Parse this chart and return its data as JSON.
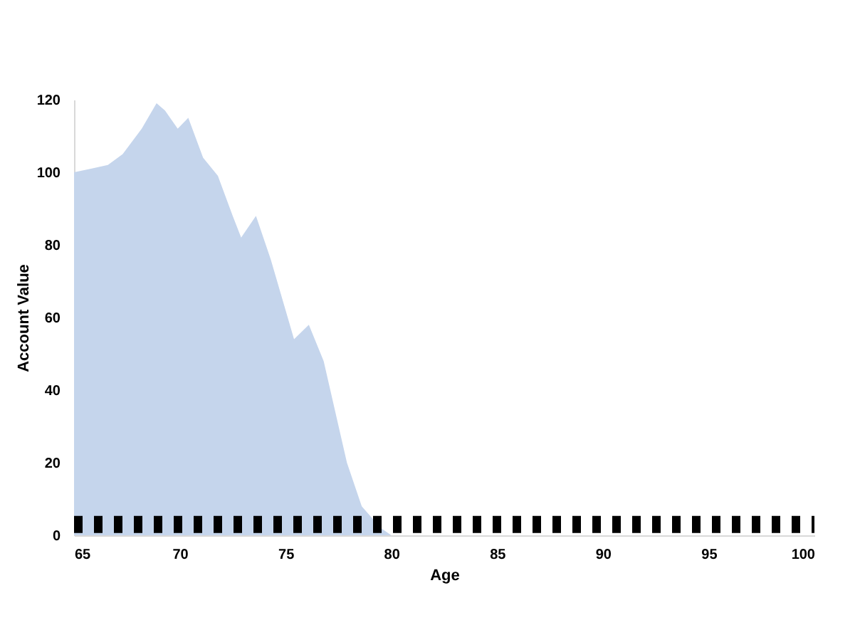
{
  "chart_data": {
    "type": "area",
    "xlabel": "Age",
    "ylabel": "Account Value",
    "xlim": [
      65,
      100
    ],
    "xticks": [
      65,
      70,
      75,
      80,
      85,
      90,
      95,
      100
    ],
    "ylim": [
      0,
      120
    ],
    "yticks": [
      0,
      20,
      40,
      60,
      80,
      100,
      120
    ],
    "series": [
      {
        "color": "#c5d5ec",
        "x": [
          65,
          65.8,
          66.6,
          67.3,
          68.2,
          68.9,
          69.3,
          69.9,
          70.4,
          71.1,
          71.8,
          72.5,
          72.9,
          73.6,
          74.3,
          75.0,
          75.4,
          76.1,
          76.8,
          77.9,
          78.6,
          79.5,
          80
        ],
        "values": [
          100,
          101,
          102,
          105,
          112,
          119,
          117,
          112,
          115,
          104,
          99,
          88,
          82,
          88,
          76,
          62,
          54,
          58,
          48,
          20,
          8,
          2,
          0
        ]
      },
      {
        "type": "line",
        "color": "#000000",
        "line_style": "dashed",
        "x": [
          65,
          100
        ],
        "values": [
          3,
          3
        ]
      }
    ]
  }
}
